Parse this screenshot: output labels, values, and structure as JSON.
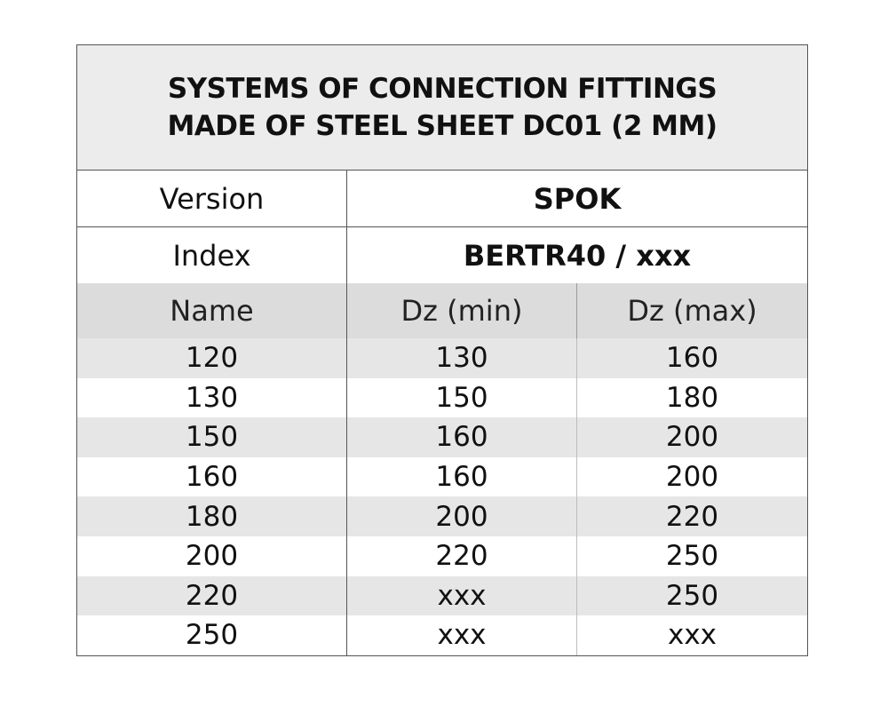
{
  "title": {
    "line1": "SYSTEMS OF CONNECTION FITTINGS",
    "line2": "MADE OF STEEL SHEET DC01 (2 MM)"
  },
  "version": {
    "label": "Version",
    "value": "SPOK"
  },
  "index": {
    "label": "Index",
    "value": "BERTR40 / xxx"
  },
  "columns": [
    "Name",
    "Dz (min)",
    "Dz (max)"
  ],
  "rows": [
    [
      "120",
      "130",
      "160"
    ],
    [
      "130",
      "150",
      "180"
    ],
    [
      "150",
      "160",
      "200"
    ],
    [
      "160",
      "160",
      "200"
    ],
    [
      "180",
      "200",
      "220"
    ],
    [
      "200",
      "220",
      "250"
    ],
    [
      "220",
      "xxx",
      "250"
    ],
    [
      "250",
      "xxx",
      "xxx"
    ]
  ]
}
